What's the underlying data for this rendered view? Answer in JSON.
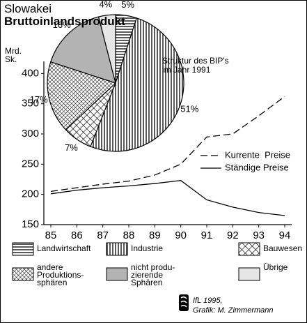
{
  "chart_data": [
    {
      "type": "line",
      "title": "Slowakei",
      "subtitle": "Bruttoinlandsprodukt",
      "y_label": "Mrd. Sk.",
      "categories": [
        "85",
        "86",
        "87",
        "88",
        "89",
        "90",
        "91",
        "92",
        "93",
        "94"
      ],
      "series": [
        {
          "name": "Kurrente  Preise",
          "color": "#000000",
          "dash": true,
          "values": [
            205,
            211,
            217,
            222,
            232,
            250,
            295,
            300,
            330,
            362
          ]
        },
        {
          "name": "Ständige Preise",
          "color": "#000000",
          "dash": false,
          "values": [
            201,
            207,
            211,
            214,
            218,
            223,
            191,
            179,
            170,
            165
          ]
        }
      ],
      "ylim": [
        150,
        420
      ],
      "yticks": [
        150,
        200,
        250,
        300,
        350,
        400
      ]
    },
    {
      "type": "pie",
      "title": "Struktur des BIP's im Jahr 1991",
      "categories": [
        "Landwirtschaft",
        "Industrie",
        "Bauwesen",
        "andere\nProduktions-\nsphären",
        "nicht produ-\nzierende\nSphären",
        "Übrige"
      ],
      "values": [
        5,
        51,
        7,
        17,
        16,
        4
      ],
      "value_labels": [
        "5%",
        "51%",
        "7%",
        "17%",
        "16%",
        "4%"
      ],
      "fills": [
        "horizontal",
        "vertical",
        "diagonal",
        "cross",
        "#b3b3b3",
        "#e6e6e6"
      ]
    }
  ],
  "credit": [
    "IfL 1995,",
    "Grafik: M. Zimmermann"
  ]
}
